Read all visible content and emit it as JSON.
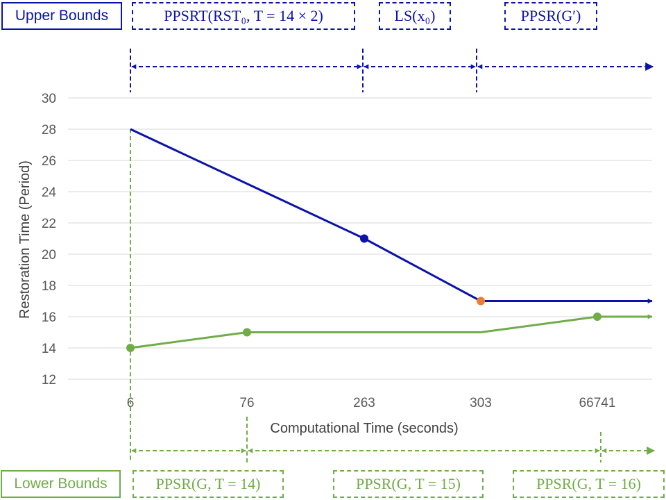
{
  "chart_data": {
    "type": "line",
    "x_categories": [
      "6",
      "76",
      "263",
      "303",
      "66741"
    ],
    "xlabel": "Computational Time (seconds)",
    "ylabel": "Restoration Time (Period)",
    "ylim": [
      12,
      30
    ],
    "y_ticks": [
      12,
      14,
      16,
      18,
      20,
      22,
      24,
      26,
      28,
      30
    ],
    "grid": true,
    "series": [
      {
        "role": "upper",
        "color": "#0b12a8",
        "points": [
          {
            "x": "6",
            "y": 28,
            "marker": false
          },
          {
            "x": "263",
            "y": 21,
            "marker": true
          },
          {
            "x": "303",
            "y": 17,
            "marker": true,
            "marker_color": "#ed7d31"
          },
          {
            "x": "66741",
            "y": 17,
            "marker": false
          }
        ],
        "arrow_end": true
      },
      {
        "role": "lower",
        "color": "#70ad47",
        "points": [
          {
            "x": "6",
            "y": 14,
            "marker": true
          },
          {
            "x": "76",
            "y": 15,
            "marker": true
          },
          {
            "x": "303",
            "y": 15,
            "marker": false
          },
          {
            "x": "66741",
            "y": 16,
            "marker": true
          }
        ],
        "arrow_end": true
      }
    ]
  },
  "upper_bounds": {
    "label": "Upper Bounds",
    "segments": [
      {
        "text": "PPSRT(RST₀, T = 14 × 2)"
      },
      {
        "text": "LS(x₀)"
      },
      {
        "text": "PPSR(G′)"
      }
    ]
  },
  "lower_bounds": {
    "label": "Lower Bounds",
    "segments": [
      {
        "text": "PPSR(G, T = 14)"
      },
      {
        "text": "PPSR(G, T = 15)"
      },
      {
        "text": "PPSR(G, T = 16)"
      }
    ]
  },
  "colors": {
    "upper": "#0b12a8",
    "lower": "#70ad47",
    "highlight": "#ed7d31",
    "grid": "#d9d9d9"
  }
}
